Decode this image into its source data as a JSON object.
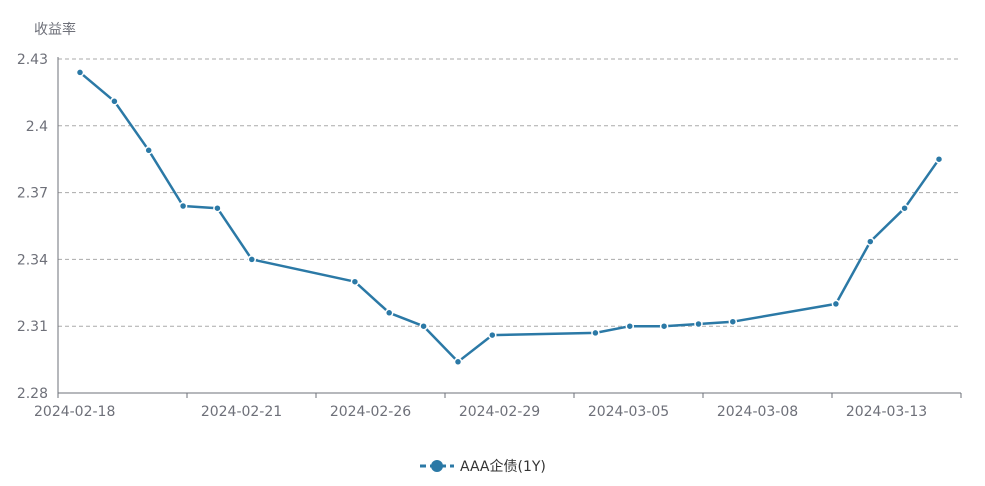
{
  "chart_data": {
    "type": "line",
    "ylabel": "收益率",
    "ylim": [
      2.28,
      2.43
    ],
    "y_ticks": [
      "2.28",
      "2.31",
      "2.34",
      "2.37",
      "2.4",
      "2.43"
    ],
    "x_tick_labels": [
      "2024-02-18",
      "2024-02-21",
      "2024-02-26",
      "2024-02-29",
      "2024-03-05",
      "2024-03-08",
      "2024-03-13"
    ],
    "grid": true,
    "legend_position": "bottom",
    "series": [
      {
        "name": "AAA企债(1Y)",
        "color": "#2b79a6",
        "x": [
          "2024-02-18",
          "2024-02-19",
          "2024-02-20",
          "2024-02-21",
          "2024-02-22",
          "2024-02-23",
          "2024-02-26",
          "2024-02-27",
          "2024-02-28",
          "2024-02-29",
          "2024-03-01",
          "2024-03-04",
          "2024-03-05",
          "2024-03-06",
          "2024-03-07",
          "2024-03-08",
          "2024-03-11",
          "2024-03-12",
          "2024-03-13",
          "2024-03-14"
        ],
        "values": [
          2.424,
          2.411,
          2.389,
          2.364,
          2.363,
          2.34,
          2.33,
          2.316,
          2.31,
          2.294,
          2.306,
          2.307,
          2.31,
          2.31,
          2.311,
          2.312,
          2.32,
          2.348,
          2.363,
          2.385
        ]
      }
    ]
  }
}
